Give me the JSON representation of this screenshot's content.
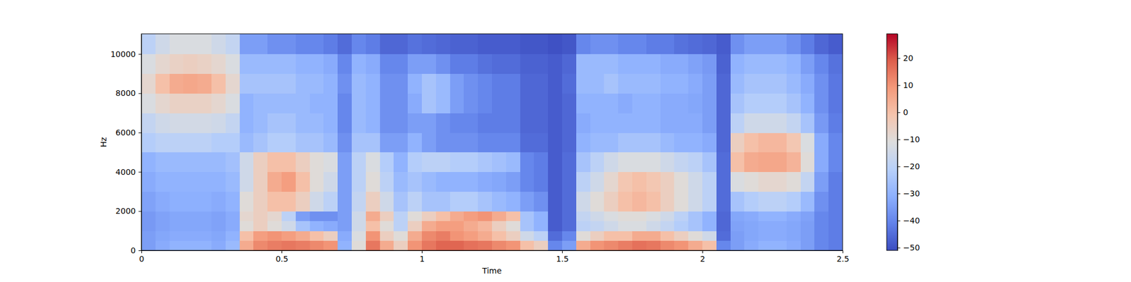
{
  "chart_data": {
    "type": "heatmap",
    "xlabel": "Time",
    "ylabel": "Hz",
    "color": "coolwarm",
    "xlim": [
      0,
      2.5
    ],
    "ylim": [
      0,
      11025
    ],
    "xticks": [
      0,
      0.5,
      1,
      1.5,
      2,
      2.5
    ],
    "yticks": [
      0,
      2000,
      4000,
      6000,
      8000,
      10000
    ],
    "x_bins": [
      0,
      0.05,
      0.1,
      0.15,
      0.2,
      0.25,
      0.3,
      0.35,
      0.4,
      0.45,
      0.5,
      0.55,
      0.6,
      0.65,
      0.7,
      0.75,
      0.8,
      0.85,
      0.9,
      0.95,
      1,
      1.05,
      1.1,
      1.15,
      1.2,
      1.25,
      1.3,
      1.35,
      1.4,
      1.45,
      1.5,
      1.55,
      1.6,
      1.65,
      1.7,
      1.75,
      1.8,
      1.85,
      1.9,
      1.95,
      2,
      2.05,
      2.1,
      2.15,
      2.2,
      2.25,
      2.3,
      2.35,
      2.4,
      2.45,
      2.5
    ],
    "y_bins": [
      0,
      500,
      1000,
      1500,
      2000,
      3000,
      4000,
      5000,
      6000,
      7000,
      8000,
      9000,
      10000,
      11025
    ],
    "cells": [
      [
        -35,
        -32,
        -30,
        -30,
        -30,
        -32,
        -28,
        5,
        12,
        14,
        15,
        14,
        12,
        10,
        -30,
        -10,
        15,
        5,
        -5,
        10,
        15,
        18,
        18,
        16,
        15,
        12,
        10,
        0,
        -5,
        -40,
        -35,
        5,
        10,
        12,
        14,
        16,
        15,
        12,
        10,
        5,
        0,
        -40,
        -35,
        -32,
        -30,
        -30,
        -32,
        -35,
        -40,
        -42
      ],
      [
        -35,
        -33,
        -32,
        -32,
        -32,
        -33,
        -30,
        0,
        8,
        10,
        8,
        5,
        0,
        -5,
        -32,
        -12,
        10,
        -5,
        -10,
        5,
        12,
        14,
        10,
        8,
        5,
        0,
        -5,
        -15,
        -20,
        -45,
        -40,
        -10,
        -5,
        0,
        0,
        5,
        5,
        0,
        -5,
        -10,
        -15,
        -45,
        -35,
        -33,
        -32,
        -32,
        -33,
        -35,
        -40,
        -42
      ],
      [
        -36,
        -34,
        -33,
        -33,
        -33,
        -34,
        -32,
        -10,
        -5,
        -10,
        -15,
        -25,
        -30,
        -32,
        -35,
        -15,
        0,
        -10,
        -20,
        -5,
        5,
        8,
        8,
        5,
        2,
        -5,
        -10,
        -25,
        -30,
        -48,
        -45,
        -20,
        -18,
        -15,
        -12,
        -12,
        -15,
        -18,
        -22,
        -25,
        -30,
        -46,
        -34,
        -33,
        -32,
        -32,
        -33,
        -35,
        -40,
        -42
      ],
      [
        -36,
        -34,
        -33,
        -33,
        -33,
        -34,
        -32,
        -8,
        -5,
        -8,
        -20,
        -35,
        -38,
        -38,
        -35,
        -15,
        5,
        -5,
        -20,
        -10,
        -5,
        0,
        5,
        8,
        10,
        5,
        0,
        -25,
        -30,
        -48,
        -45,
        -18,
        -15,
        -12,
        -10,
        -10,
        -12,
        -15,
        -20,
        -25,
        -30,
        -46,
        -33,
        -32,
        -30,
        -30,
        -32,
        -34,
        -40,
        -42
      ],
      [
        -34,
        -32,
        -31,
        -31,
        -31,
        -32,
        -30,
        -10,
        -5,
        0,
        0,
        -5,
        -15,
        -20,
        -35,
        -18,
        -5,
        -15,
        -25,
        -20,
        -25,
        -25,
        -22,
        -22,
        -25,
        -28,
        -30,
        -35,
        -38,
        -48,
        -45,
        -15,
        -10,
        -5,
        0,
        2,
        0,
        -5,
        -10,
        -15,
        -20,
        -45,
        -25,
        -22,
        -20,
        -20,
        -22,
        -28,
        -38,
        -42
      ],
      [
        -32,
        -30,
        -30,
        -30,
        -30,
        -30,
        -28,
        -15,
        -5,
        5,
        8,
        0,
        -10,
        -15,
        -35,
        -20,
        -10,
        -20,
        -28,
        -25,
        -28,
        -30,
        -30,
        -30,
        -32,
        -33,
        -35,
        -40,
        -42,
        -48,
        -45,
        -20,
        -15,
        -8,
        -2,
        0,
        -2,
        -5,
        -10,
        -15,
        -20,
        -45,
        -12,
        -10,
        -8,
        -8,
        -10,
        -18,
        -35,
        -42
      ],
      [
        -30,
        -28,
        -28,
        -28,
        -28,
        -28,
        -26,
        -15,
        -5,
        0,
        0,
        -5,
        -10,
        -12,
        -35,
        -20,
        -12,
        -22,
        -30,
        -22,
        -20,
        -20,
        -22,
        -22,
        -24,
        -26,
        -28,
        -40,
        -42,
        -48,
        -45,
        -25,
        -20,
        -15,
        -12,
        -12,
        -12,
        -15,
        -18,
        -20,
        -25,
        -45,
        0,
        5,
        6,
        6,
        3,
        -10,
        -32,
        -40
      ],
      [
        -22,
        -20,
        -20,
        -20,
        -20,
        -22,
        -22,
        -28,
        -25,
        -22,
        -22,
        -25,
        -25,
        -28,
        -38,
        -25,
        -25,
        -35,
        -35,
        -30,
        -35,
        -38,
        -38,
        -38,
        -40,
        -40,
        -40,
        -45,
        -45,
        -48,
        -46,
        -30,
        -28,
        -28,
        -25,
        -25,
        -25,
        -28,
        -30,
        -30,
        -32,
        -46,
        -5,
        0,
        2,
        2,
        -2,
        -12,
        -32,
        -40
      ],
      [
        -18,
        -15,
        -14,
        -14,
        -14,
        -15,
        -18,
        -30,
        -28,
        -25,
        -25,
        -28,
        -28,
        -30,
        -40,
        -28,
        -30,
        -38,
        -38,
        -35,
        -35,
        -38,
        -40,
        -40,
        -42,
        -42,
        -42,
        -46,
        -46,
        -48,
        -46,
        -32,
        -30,
        -30,
        -30,
        -30,
        -30,
        -32,
        -32,
        -32,
        -35,
        -46,
        -20,
        -15,
        -15,
        -15,
        -18,
        -25,
        -36,
        -42
      ],
      [
        -12,
        -8,
        -6,
        -6,
        -6,
        -8,
        -12,
        -30,
        -28,
        -28,
        -28,
        -28,
        -30,
        -30,
        -40,
        -28,
        -30,
        -38,
        -38,
        -32,
        -25,
        -28,
        -35,
        -38,
        -40,
        -42,
        -42,
        -46,
        -46,
        -48,
        -46,
        -30,
        -30,
        -30,
        -32,
        -30,
        -30,
        -32,
        -32,
        -33,
        -35,
        -46,
        -25,
        -22,
        -22,
        -22,
        -25,
        -30,
        -38,
        -43
      ],
      [
        -8,
        0,
        5,
        6,
        5,
        0,
        -8,
        -25,
        -25,
        -25,
        -25,
        -28,
        -28,
        -30,
        -38,
        -28,
        -30,
        -38,
        -38,
        -30,
        -25,
        -28,
        -35,
        -38,
        -40,
        -42,
        -42,
        -46,
        -46,
        -48,
        -45,
        -28,
        -28,
        -25,
        -28,
        -28,
        -28,
        -30,
        -30,
        -32,
        -35,
        -46,
        -28,
        -25,
        -25,
        -25,
        -28,
        -32,
        -38,
        -43
      ],
      [
        -12,
        -8,
        -6,
        -5,
        -6,
        -8,
        -12,
        -28,
        -28,
        -28,
        -28,
        -30,
        -30,
        -32,
        -40,
        -30,
        -32,
        -40,
        -40,
        -35,
        -35,
        -38,
        -42,
        -42,
        -44,
        -45,
        -45,
        -47,
        -47,
        -48,
        -46,
        -28,
        -28,
        -28,
        -30,
        -30,
        -30,
        -32,
        -32,
        -34,
        -36,
        -47,
        -30,
        -28,
        -28,
        -28,
        -30,
        -35,
        -40,
        -44
      ],
      [
        -20,
        -15,
        -12,
        -12,
        -12,
        -15,
        -18,
        -35,
        -35,
        -38,
        -38,
        -40,
        -40,
        -42,
        -45,
        -40,
        -42,
        -46,
        -46,
        -44,
        -45,
        -46,
        -47,
        -47,
        -48,
        -48,
        -48,
        -49,
        -49,
        -50,
        -49,
        -40,
        -38,
        -38,
        -40,
        -40,
        -42,
        -42,
        -44,
        -45,
        -46,
        -48,
        -38,
        -35,
        -35,
        -35,
        -38,
        -42,
        -46,
        -48
      ]
    ],
    "colorbar": {
      "range": [
        -51,
        29
      ],
      "ticks": [
        {
          "value": -50,
          "label": "−50"
        },
        {
          "value": -40,
          "label": "−40"
        },
        {
          "value": -30,
          "label": "−30"
        },
        {
          "value": -20,
          "label": "−20"
        },
        {
          "value": -10,
          "label": "−10"
        },
        0,
        10,
        20
      ]
    }
  }
}
